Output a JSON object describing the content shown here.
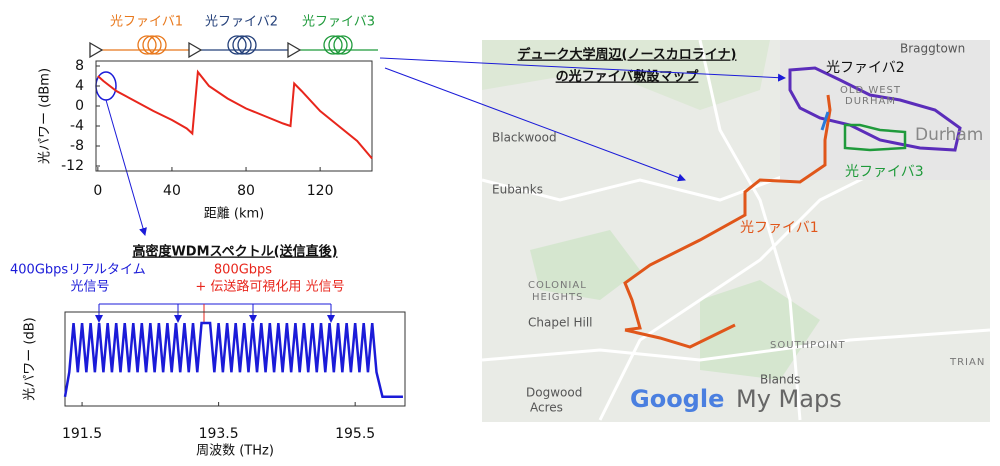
{
  "chart_data": [
    {
      "type": "line",
      "x_label": "距離 (km)",
      "y_label": "光パワー (dBm)",
      "x": [
        0,
        3,
        10,
        20,
        30,
        40,
        48,
        51,
        54,
        60,
        70,
        80,
        90,
        100,
        104,
        106,
        110,
        120,
        130,
        140,
        148
      ],
      "series": [
        {
          "color": "#e8261c",
          "values": [
            6,
            5,
            3,
            1,
            -1,
            -2.8,
            -4.5,
            -5.5,
            6.8,
            4,
            1.5,
            -0.5,
            -2,
            -3.5,
            -4,
            4.5,
            3,
            -1,
            -4,
            -7,
            -10.5
          ]
        }
      ],
      "xlim": [
        -1,
        148
      ],
      "xticks": [
        0,
        40,
        80,
        120
      ],
      "ylim": [
        -13,
        9
      ],
      "yticks": [
        8,
        4,
        0,
        -4,
        -8,
        -12
      ]
    },
    {
      "type": "line",
      "title": "高密度WDMスペクトル(送信直後)",
      "x_label": "周波数 (THz)",
      "y_label": "光パワー (dB)",
      "x": [
        191.25,
        191.3125,
        191.375,
        191.4375,
        191.5,
        191.5625,
        191.625,
        191.6875,
        191.75,
        191.8125,
        191.875,
        191.9375,
        192,
        192.0625,
        192.125,
        192.1875,
        192.25,
        192.3125,
        192.375,
        192.4375,
        192.5,
        192.5625,
        192.625,
        192.6875,
        192.75,
        192.8125,
        192.875,
        192.9375,
        193,
        193.0625,
        193.125,
        193.1875,
        193.25,
        193.3125,
        193.375,
        193.4375,
        193.5,
        193.5625,
        193.625,
        193.6875,
        193.75,
        193.8125,
        193.875,
        193.9375,
        194,
        194.0625,
        194.125,
        194.1875,
        194.25,
        194.3125,
        194.375,
        194.4375,
        194.5,
        194.5625,
        194.625,
        194.6875,
        194.75,
        194.8125,
        194.875,
        194.9375,
        195,
        195.0625,
        195.125,
        195.1875,
        195.25,
        195.3125,
        195.375,
        195.4375,
        195.5,
        195.5625,
        195.625,
        195.6875,
        195.75,
        195.8125,
        195.9,
        196.2
      ],
      "series": [
        {
          "color": "#1b1bd8",
          "values": [
            -3,
            1,
            9,
            1,
            9,
            1,
            9,
            1,
            9,
            1,
            9,
            1,
            9,
            1,
            9,
            1,
            9,
            1,
            9,
            1,
            9,
            1,
            9,
            1,
            9,
            1,
            9,
            1,
            9,
            1,
            9,
            1,
            9,
            9,
            9,
            1,
            9,
            1,
            9,
            1,
            9,
            1,
            9,
            1,
            9,
            1,
            9,
            1,
            9,
            1,
            9,
            1,
            9,
            1,
            9,
            1,
            9,
            1,
            9,
            1,
            9,
            1,
            9,
            1,
            9,
            1,
            9,
            1,
            9,
            1,
            9,
            1,
            9,
            1,
            -3,
            -3
          ]
        }
      ],
      "xlim": [
        191.25,
        196.23
      ],
      "xticks": [
        191.5,
        193.5,
        195.5
      ],
      "ylim": [
        -4.5,
        10.8
      ],
      "annotations": [
        "400Gbpsリアルタイム",
        "光信号",
        "800Gbps",
        "+ 伝送路可視化用 光信号"
      ]
    }
  ],
  "fiber_labels": [
    "光ファイバ1",
    "光ファイバ2",
    "光ファイバ3"
  ],
  "map": {
    "title": [
      "デューク大学周辺(ノースカロライナ)",
      "の光ファイバ敷設マップ"
    ],
    "places": [
      "Braggtown",
      "OLD WEST",
      "DURHAM",
      "Durham",
      "Blackwood",
      "Eubanks",
      "COLONIAL",
      "HEIGHTS",
      "Chapel Hill",
      "SOUTHPOINT",
      "TRIAN",
      "Blands",
      "Dogwood",
      "Acres"
    ],
    "routes": [
      "光ファイバ2",
      "光ファイバ3",
      "光ファイバ1"
    ],
    "brand": [
      "Google",
      "My Maps"
    ]
  }
}
